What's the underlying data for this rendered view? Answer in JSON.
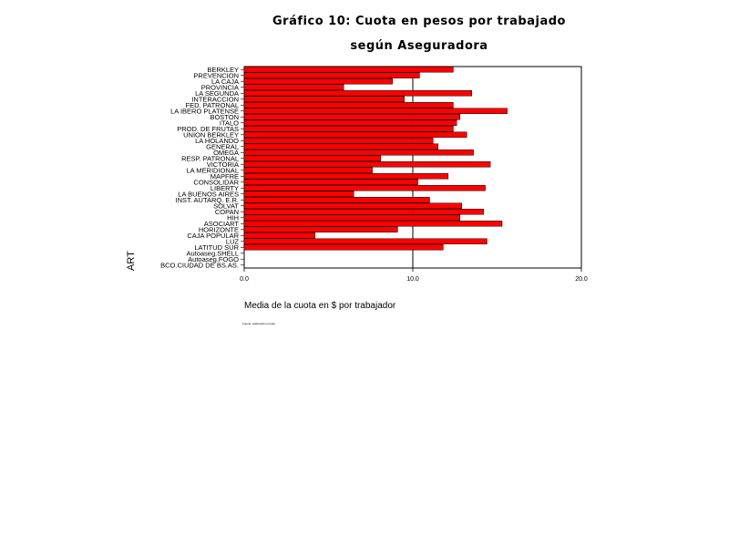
{
  "chart_data": {
    "type": "bar",
    "orientation": "horizontal",
    "title_line1": "Gráfico 10: Cuota en pesos por trabajado",
    "title_line2": "según Aseguradora",
    "xlabel": "Media de la cuota en $ por trabajador",
    "ylabel": "ART",
    "xlim": [
      0,
      20
    ],
    "xticks": [
      "0.0",
      "10.0",
      "20.0"
    ],
    "xtick_values": [
      0,
      10,
      20
    ],
    "bar_color": "#ff0000",
    "categories": [
      "BERKLEY",
      "PREVENCION",
      "LA CAJA",
      "PROVINCIA",
      "LA SEGUNDA",
      "INTERACCION",
      "FED. PATRONAL",
      "LA IBERO PLATENSE",
      "BOSTON",
      "ITALO",
      "PROD. DE FRUTAS",
      "UNION BERKLEY",
      "LA HOLANDO",
      "GENERAL",
      "OMEGA",
      "RESP. PATRONAL",
      "VICTORIA",
      "LA MERIDIONAL",
      "MAPFRE",
      "CONSOLIDAR",
      "LIBERTY",
      "LA BUENOS AIRES",
      "INST. AUTARQ. E.R.",
      "SOLVAT",
      "COPAN",
      "HIH",
      "ASOCIART",
      "HORIZONTE",
      "CAJA POPULAR",
      "LUZ",
      "LATITUD SUR",
      "Autoaseg.SHELL",
      "Autoaseg.FOGO",
      "BCO.CIUDAD DE BS.AS."
    ],
    "values": [
      12.4,
      10.4,
      8.8,
      5.9,
      13.5,
      9.5,
      12.4,
      15.6,
      12.8,
      12.6,
      12.4,
      13.2,
      11.2,
      11.5,
      13.6,
      8.1,
      14.6,
      7.6,
      12.1,
      10.3,
      14.3,
      6.5,
      11.0,
      12.9,
      14.2,
      12.8,
      15.3,
      9.1,
      4.2,
      14.4,
      11.8,
      0,
      0,
      0
    ],
    "grid": "reference line at 10"
  },
  "footnote": "Fuente: elaboración propia"
}
